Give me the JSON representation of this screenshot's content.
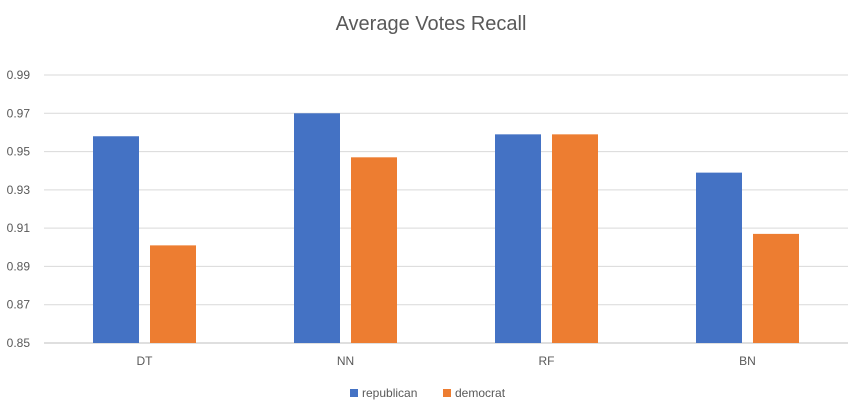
{
  "chart_data": {
    "type": "bar",
    "title": "Average Votes Recall",
    "xlabel": "",
    "ylabel": "",
    "categories": [
      "DT",
      "NN",
      "RF",
      "BN"
    ],
    "series": [
      {
        "name": "republican",
        "values": [
          0.958,
          0.97,
          0.959,
          0.939
        ],
        "color": "#4472C4"
      },
      {
        "name": "democrat",
        "values": [
          0.901,
          0.947,
          0.959,
          0.907
        ],
        "color": "#ED7D31"
      }
    ],
    "ylim": [
      0.85,
      0.99
    ],
    "yticks": [
      "0.85",
      "0.87",
      "0.89",
      "0.91",
      "0.93",
      "0.95",
      "0.97",
      "0.99"
    ],
    "grid": true,
    "legend": "bottom"
  }
}
